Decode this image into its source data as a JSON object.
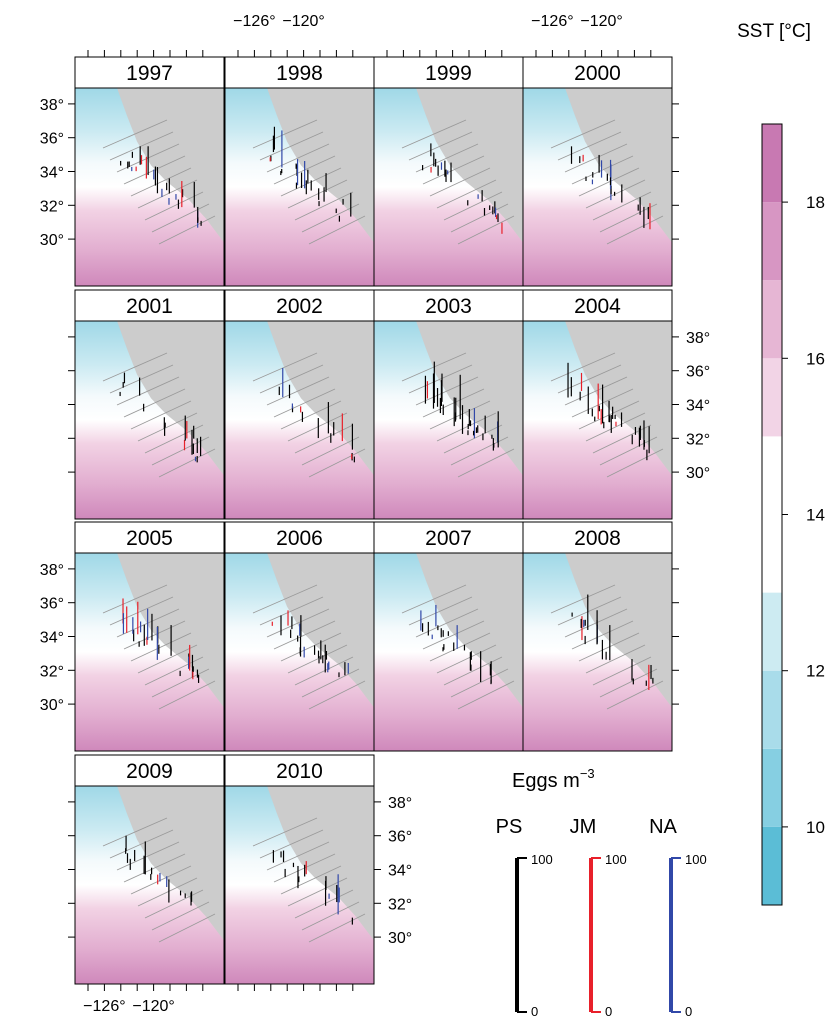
{
  "chart_data": {
    "type": "map",
    "panels": [
      "1997",
      "1998",
      "1999",
      "2000",
      "2001",
      "2002",
      "2003",
      "2004",
      "2005",
      "2006",
      "2007",
      "2008",
      "2009",
      "2010"
    ],
    "x_ticks": [
      "−126°",
      "−120°"
    ],
    "y_ticks": [
      "38°",
      "36°",
      "34°",
      "32°",
      "30°"
    ],
    "colorbar": {
      "title": "SST [°C]",
      "range": [
        9,
        19
      ],
      "ticks": [
        10,
        12,
        14,
        16,
        18
      ],
      "tick_labels": [
        "10",
        "12",
        "14",
        "16",
        "18"
      ],
      "bands": [
        {
          "from": 9,
          "to": 10,
          "color": "#5bbdd6"
        },
        {
          "from": 10,
          "to": 11,
          "color": "#86cfe2"
        },
        {
          "from": 11,
          "to": 12,
          "color": "#a9dcea"
        },
        {
          "from": 12,
          "to": 13,
          "color": "#cdebf2"
        },
        {
          "from": 13,
          "to": 15,
          "color": "#ffffff"
        },
        {
          "from": 15,
          "to": 16,
          "color": "#f2d4e6"
        },
        {
          "from": 16,
          "to": 17,
          "color": "#e6b6d4"
        },
        {
          "from": 17,
          "to": 18,
          "color": "#d796c3"
        },
        {
          "from": 18,
          "to": 19,
          "color": "#c879b2"
        }
      ]
    },
    "legend": {
      "title": "Eggs m",
      "title_exponent": "−3",
      "series": [
        {
          "name": "PS",
          "color": "#000000",
          "max_label": "100",
          "min_label": "0"
        },
        {
          "name": "JM",
          "color": "#e8202a",
          "max_label": "100",
          "min_label": "0"
        },
        {
          "name": "NA",
          "color": "#3148a8",
          "max_label": "100",
          "min_label": "0"
        }
      ]
    }
  }
}
